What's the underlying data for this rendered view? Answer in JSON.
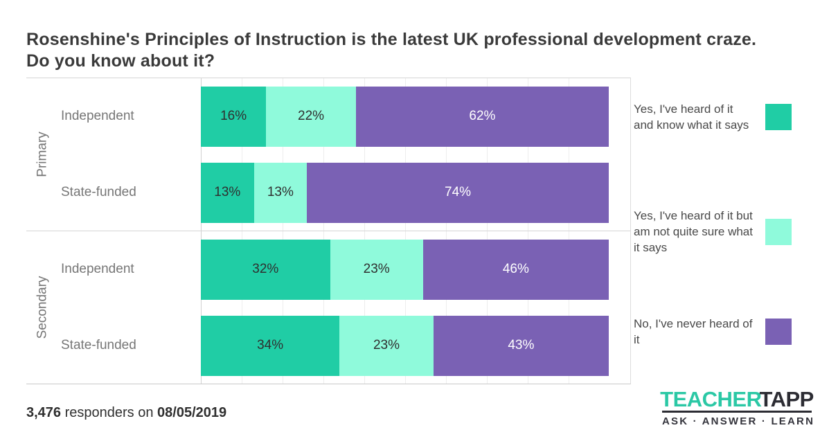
{
  "title": {
    "line1": "Rosenshine's Principles of Instruction is the latest UK professional development craze.",
    "line2": "Do you know about it?"
  },
  "chart_data": {
    "type": "bar",
    "stacked": true,
    "orientation": "horizontal",
    "value_format": "percent",
    "legend_position": "right",
    "x_axis": {
      "min": 0,
      "max": 100,
      "gridline_step": 10,
      "gridlines_visible": true,
      "tick_labels_visible": false
    },
    "row_groups": [
      {
        "group": "Primary",
        "rows": [
          {
            "category": "Independent",
            "values": [
              16,
              22,
              62
            ]
          },
          {
            "category": "State-funded",
            "values": [
              13,
              13,
              74
            ]
          }
        ]
      },
      {
        "group": "Secondary",
        "rows": [
          {
            "category": "Independent",
            "values": [
              32,
              23,
              46
            ]
          },
          {
            "category": "State-funded",
            "values": [
              34,
              23,
              43
            ]
          }
        ]
      }
    ],
    "series": [
      {
        "name": "Yes, I've heard of it and know what it says",
        "color": "#20cda5",
        "label_color": "#2f2f2f"
      },
      {
        "name": "Yes, I've heard of it but am not quite sure what it says",
        "color": "#8ffadb",
        "label_color": "#2f2f2f"
      },
      {
        "name": "No, I've never heard of it",
        "color": "#7a61b4",
        "label_color": "#ffffff"
      }
    ]
  },
  "footer": {
    "count": "3,476",
    "text": " responders on ",
    "date": "08/05/2019"
  },
  "logo": {
    "brand_teacher": "TEACHER",
    "brand_tapp": "TAPP",
    "tagline": "ASK · ANSWER · LEARN",
    "icon": "tap-finger-icon",
    "teal": "#2bc8a5",
    "dark": "#2c2c33"
  }
}
